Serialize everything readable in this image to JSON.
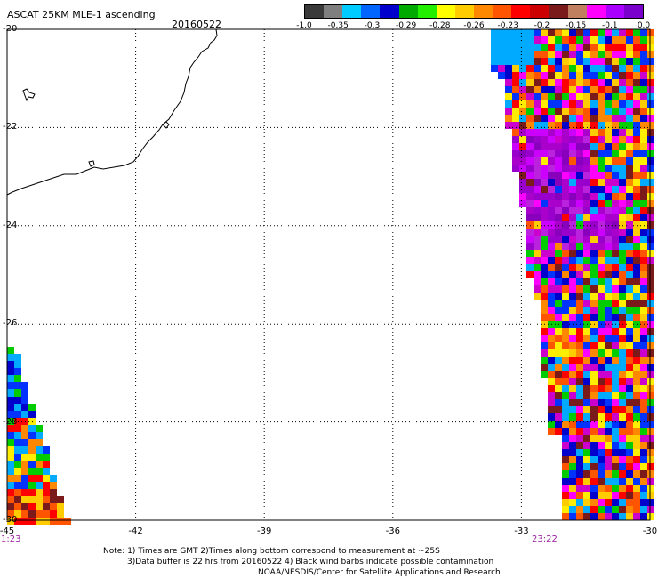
{
  "title": "ASCAT 25KM MLE-1 ascending",
  "date": "20160522",
  "colorbar": {
    "labels": [
      "-1.0",
      "-0.35",
      "-0.3",
      "-0.29",
      "-0.28",
      "-0.26",
      "-0.23",
      "-0.2",
      "-0.15",
      "-0.1",
      "0.0"
    ],
    "colors": [
      "#3a3a3a",
      "#7f7f7f",
      "#00ccff",
      "#0066ff",
      "#0000cc",
      "#00aa00",
      "#22ee00",
      "#ffff00",
      "#ffcc00",
      "#ff8800",
      "#ff5500",
      "#ff0000",
      "#cc0000",
      "#7a1a1a",
      "#c08060",
      "#ff00ff",
      "#aa00ff",
      "#7a00cc"
    ]
  },
  "axes": {
    "lat_labels": [
      "-20",
      "-22",
      "-24",
      "-26",
      "-28",
      "-30"
    ],
    "lon_labels": [
      "-45",
      "-42",
      "-39",
      "-36",
      "-33",
      "-30"
    ],
    "lat_range": [
      -30,
      -20
    ],
    "lon_range": [
      -45,
      -30
    ],
    "grid": "dotted"
  },
  "times": {
    "left": "1:23",
    "right": "23:22"
  },
  "footer": {
    "line1": "Note: 1) Times are GMT 2)Times along bottom correspond to measurement at ~25S",
    "line2": "3)Data buffer is 22 hrs from 20160522 4) Black wind barbs indicate possible contamination",
    "line3": "NOAA/NESDIS/Center for Satellite Applications and Research"
  }
}
